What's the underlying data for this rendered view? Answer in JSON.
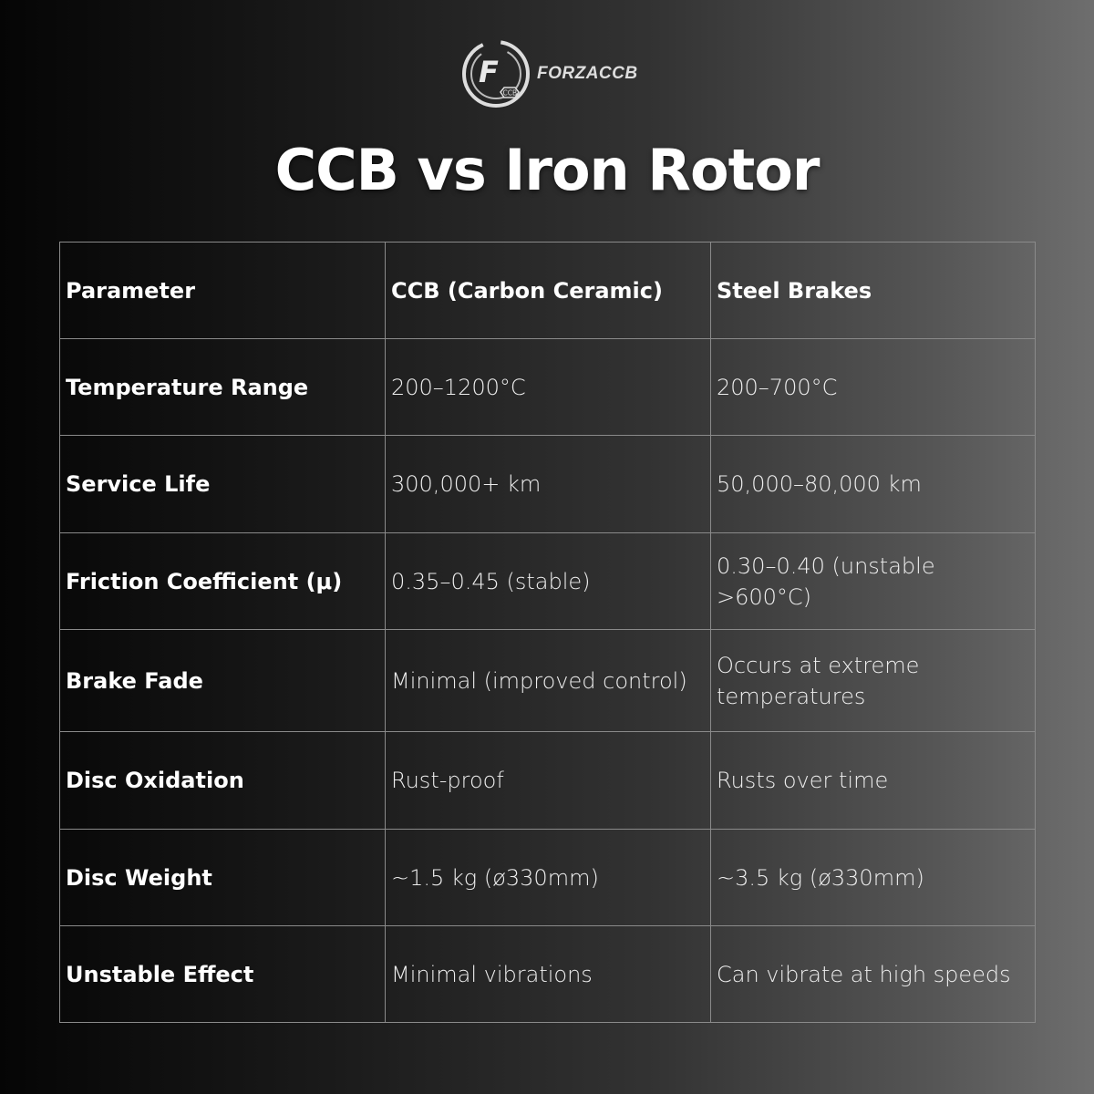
{
  "logo": {
    "brand": "FORZACCB",
    "badge": "CCB",
    "letter": "F"
  },
  "title": "CCB vs Iron Rotor",
  "table": {
    "headers": [
      "Parameter",
      "CCB (Carbon Ceramic)",
      "Steel Brakes"
    ],
    "rows": [
      [
        "Temperature Range",
        "200–1200°C",
        "200–700°C"
      ],
      [
        "Service Life",
        "300,000+ km",
        "50,000–80,000 km"
      ],
      [
        "Friction Coefficient (μ)",
        "0.35–0.45 (stable)",
        "0.30–0.40 (unstable >600°C)"
      ],
      [
        "Brake Fade",
        "Minimal (improved control)",
        "Occurs at extreme temperatures"
      ],
      [
        "Disc Oxidation",
        "Rust-proof",
        "Rusts over time"
      ],
      [
        "Disc Weight",
        "~1.5 kg (ø330mm)",
        "~3.5 kg (ø330mm)"
      ],
      [
        "Unstable Effect",
        "Minimal vibrations",
        "Can vibrate at high speeds"
      ]
    ]
  }
}
